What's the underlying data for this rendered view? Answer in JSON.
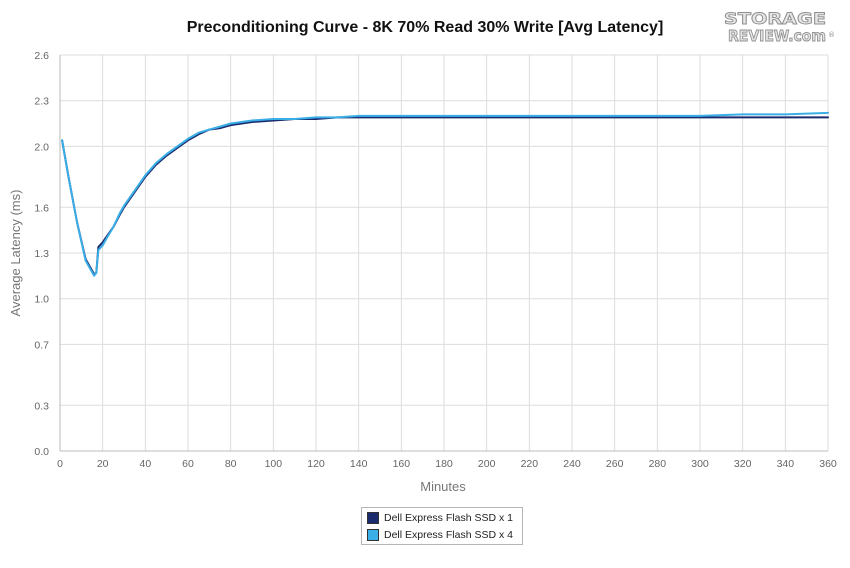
{
  "chart_data": {
    "type": "line",
    "title": "Preconditioning Curve - 8K 70% Read 30% Write [Avg Latency]",
    "xlabel": "Minutes",
    "ylabel": "Average Latency (ms)",
    "xlim": [
      0,
      360
    ],
    "ylim": [
      0,
      2.6
    ],
    "xticks": [
      0,
      20,
      40,
      60,
      80,
      100,
      120,
      140,
      160,
      180,
      200,
      220,
      240,
      260,
      280,
      300,
      320,
      340,
      360
    ],
    "yticks": [
      0.0,
      0.3,
      0.7,
      1.0,
      1.3,
      1.6,
      2.0,
      2.3,
      2.6
    ],
    "yticklabels": [
      "0.0",
      "0.3",
      "0.7",
      "1.0",
      "1.3",
      "1.6",
      "2.0",
      "2.3",
      "2.6"
    ],
    "grid": true,
    "legend_position": "bottom",
    "series": [
      {
        "name": "Dell Express Flash SSD x 1",
        "color": "#1a2b6e",
        "x": [
          1,
          4,
          8,
          12,
          16,
          17,
          18,
          20,
          22,
          25,
          28,
          30,
          35,
          40,
          45,
          50,
          55,
          60,
          65,
          70,
          75,
          80,
          90,
          100,
          110,
          120,
          130,
          140,
          160,
          180,
          200,
          220,
          240,
          260,
          280,
          300,
          320,
          340,
          360
        ],
        "y": [
          2.04,
          1.8,
          1.5,
          1.26,
          1.16,
          1.17,
          1.34,
          1.37,
          1.41,
          1.47,
          1.55,
          1.6,
          1.7,
          1.8,
          1.88,
          1.94,
          1.99,
          2.04,
          2.08,
          2.11,
          2.12,
          2.14,
          2.16,
          2.17,
          2.18,
          2.18,
          2.19,
          2.19,
          2.19,
          2.19,
          2.19,
          2.19,
          2.19,
          2.19,
          2.19,
          2.19,
          2.19,
          2.19,
          2.19
        ]
      },
      {
        "name": "Dell Express Flash SSD x 4",
        "color": "#3aaee6",
        "x": [
          1,
          4,
          8,
          12,
          16,
          17,
          18,
          20,
          22,
          25,
          28,
          30,
          35,
          40,
          45,
          50,
          55,
          60,
          65,
          70,
          75,
          80,
          90,
          100,
          110,
          120,
          130,
          140,
          160,
          180,
          200,
          220,
          240,
          260,
          280,
          300,
          320,
          340,
          360
        ],
        "y": [
          2.04,
          1.8,
          1.5,
          1.25,
          1.15,
          1.17,
          1.32,
          1.35,
          1.4,
          1.47,
          1.56,
          1.61,
          1.71,
          1.81,
          1.89,
          1.95,
          2.0,
          2.05,
          2.09,
          2.11,
          2.13,
          2.15,
          2.17,
          2.18,
          2.18,
          2.19,
          2.19,
          2.2,
          2.2,
          2.2,
          2.2,
          2.2,
          2.2,
          2.2,
          2.2,
          2.2,
          2.21,
          2.21,
          2.22
        ]
      }
    ]
  },
  "logo": {
    "line1": "STORAGE",
    "line2": "REVIEW.com",
    "mark": "®"
  }
}
